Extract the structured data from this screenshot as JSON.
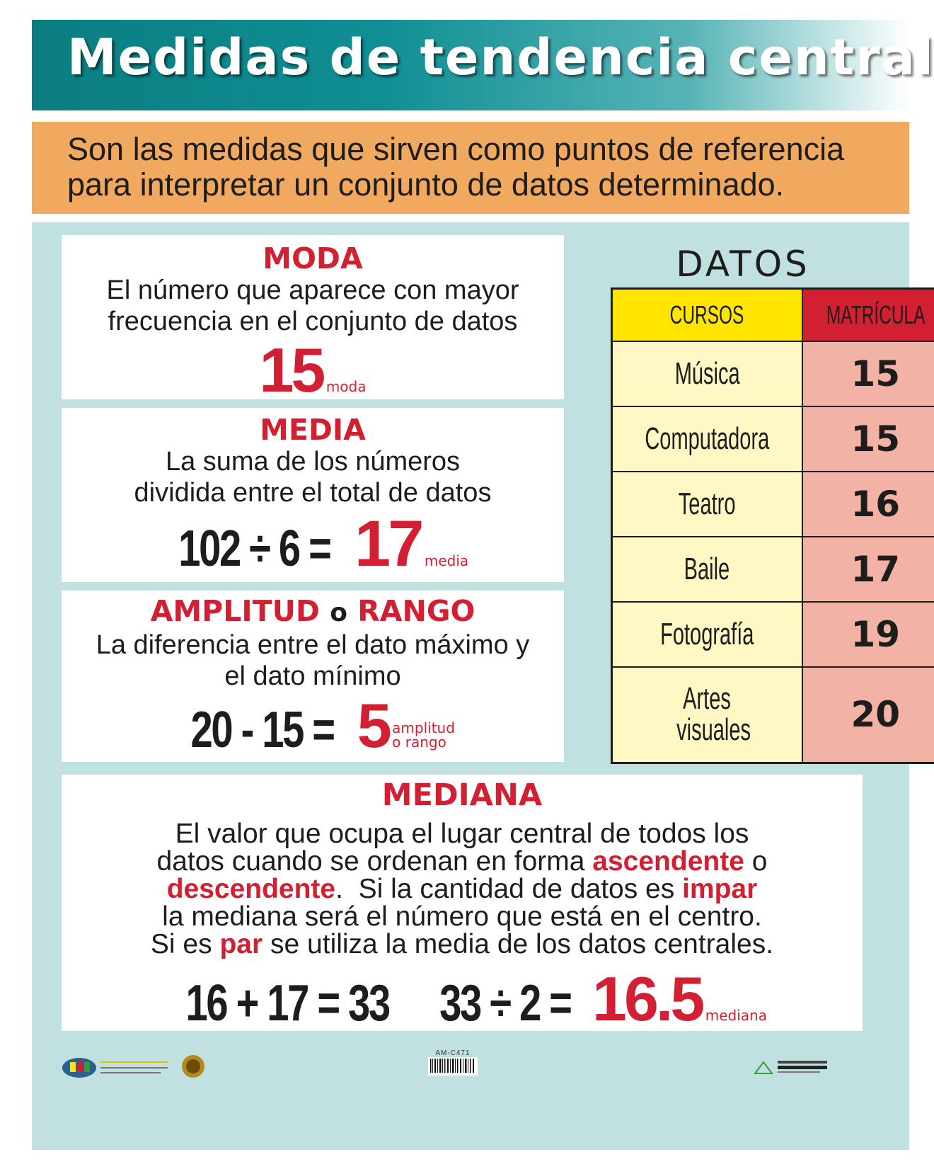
{
  "header": {
    "title": "Medidas de tendencia central",
    "intro": "Son las medidas que sirven como puntos de referencia para interpretar un conjunto de datos determinado."
  },
  "moda": {
    "heading": "MODA",
    "description": "El número que aparece con mayor frecuencia en el conjunto de datos",
    "result": "15",
    "result_label": "moda"
  },
  "media": {
    "heading": "MEDIA",
    "description": "La suma de los números dividida entre el total de datos",
    "equation": "102 ÷ 6 =",
    "result": "17",
    "result_label": "media"
  },
  "amplitud": {
    "heading_a": "AMPLITUD",
    "connector": "o",
    "heading_b": "RANGO",
    "description": "La diferencia entre el dato máximo y el dato mínimo",
    "equation": "20 - 15 =",
    "result": "5",
    "result_label_1": "amplitud",
    "result_label_2": "o rango"
  },
  "datos": {
    "title": "DATOS",
    "headers": [
      "CURSOS",
      "MATRÍCULA"
    ],
    "rows": [
      {
        "curso": "Música",
        "matricula": "15"
      },
      {
        "curso": "Computadora",
        "matricula": "15"
      },
      {
        "curso": "Teatro",
        "matricula": "16"
      },
      {
        "curso": "Baile",
        "matricula": "17"
      },
      {
        "curso": "Fotografía",
        "matricula": "19"
      },
      {
        "curso": "Artes visuales",
        "matricula": "20"
      }
    ]
  },
  "mediana": {
    "heading": "MEDIANA",
    "line1": "El valor que ocupa el lugar central de todos los",
    "line2_a": "datos cuando se ordenan en forma",
    "line2_red": "ascendente",
    "line2_b": "o",
    "line3_red": "descendente",
    "line3_a": ".  Si la cantidad de datos es",
    "line3_red2": "impar",
    "line4": "la mediana será el número que está en el centro.",
    "line5_a": "Si es",
    "line5_red": "par",
    "line5_b": "se utiliza la media de los datos centrales.",
    "equation_1": "16 + 17 = 33",
    "equation_2": "33 ÷ 2 =",
    "result": "16.5",
    "result_label": "mediana"
  },
  "footer": {
    "code": "AM-C471"
  },
  "colors": {
    "red": "#d21f32",
    "teal": "#0f8f94",
    "orange": "#f0a95e",
    "light_teal": "#c0e1e0",
    "yellow": "#ffe500"
  }
}
